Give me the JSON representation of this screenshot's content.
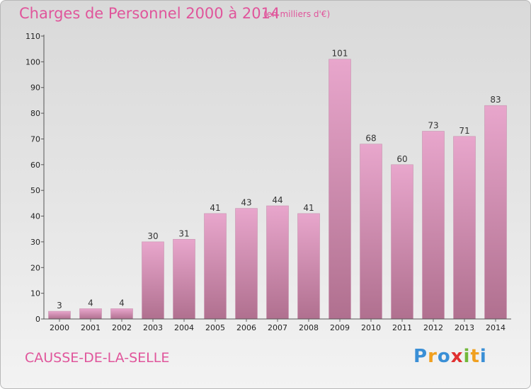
{
  "header": {
    "title": "Charges de Personnel 2000 à 2014",
    "subtitle": "(en milliers d'€)"
  },
  "footer": {
    "commune": "CAUSSE-DE-LA-SELLE",
    "logo": "Proxiti"
  },
  "colors": {
    "accent": "#e0559b",
    "bar_top": "#e8a6cc",
    "bar_bottom": "#b0708f"
  },
  "chart_data": {
    "type": "bar",
    "title": "Charges de Personnel 2000 à 2014",
    "subtitle": "(en milliers d'€)",
    "categories": [
      "2000",
      "2001",
      "2002",
      "2003",
      "2004",
      "2005",
      "2006",
      "2007",
      "2008",
      "2009",
      "2010",
      "2011",
      "2012",
      "2013",
      "2014"
    ],
    "values": [
      3,
      4,
      4,
      30,
      31,
      41,
      43,
      44,
      41,
      101,
      68,
      60,
      73,
      71,
      83
    ],
    "ylim": [
      0,
      110
    ],
    "yticks": [
      0,
      10,
      20,
      30,
      40,
      50,
      60,
      70,
      80,
      90,
      100,
      110
    ],
    "grid": false,
    "legend": "none"
  }
}
